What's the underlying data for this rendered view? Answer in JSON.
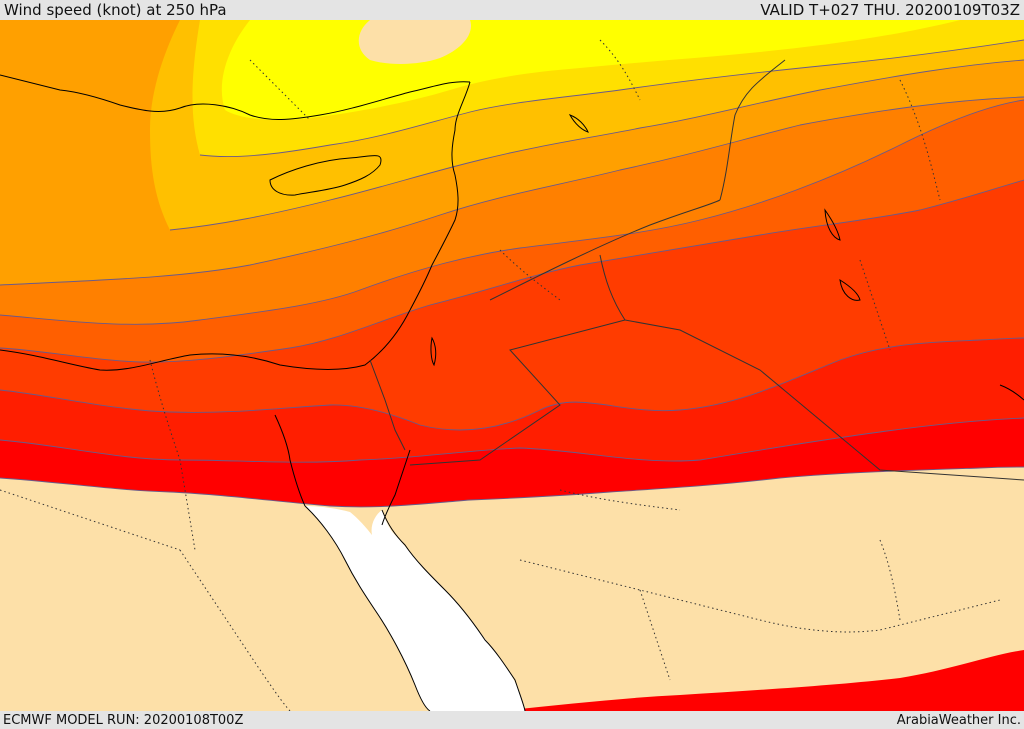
{
  "header": {
    "title": "Wind speed (knot) at 250 hPa",
    "valid_time": "VALID T+027 THU. 20200109T03Z"
  },
  "footer": {
    "model_run": "ECMWF MODEL RUN: 20200108T00Z",
    "credit": "ArabiaWeather Inc."
  },
  "map": {
    "colors": {
      "low": "#fde0a8",
      "band1": "#ffff00",
      "band2": "#ffe000",
      "band3": "#ffc000",
      "band4": "#ffa000",
      "band5": "#ff8000",
      "band6": "#ff5f00",
      "band7": "#ff3c00",
      "band8": "#ff1e00",
      "band9": "#ff0000",
      "sea": "#ffffff",
      "coastline": "#000000",
      "border": "#333333"
    }
  }
}
